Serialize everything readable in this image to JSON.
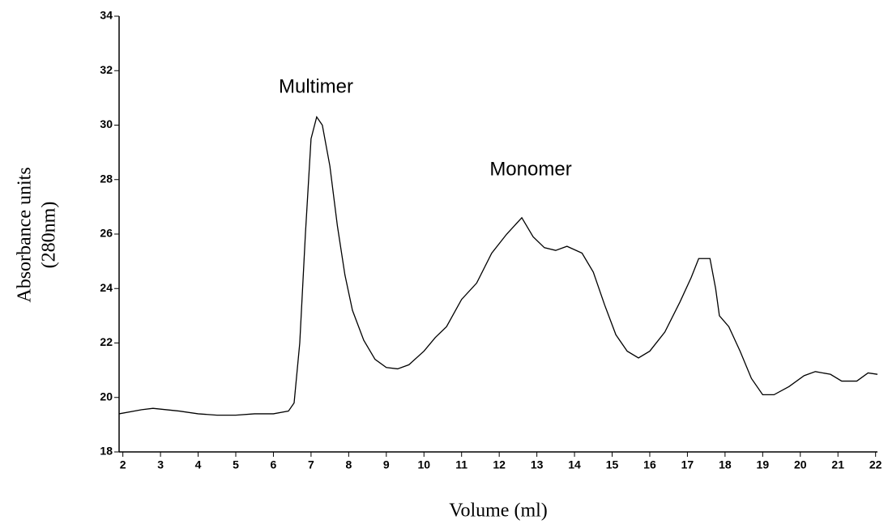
{
  "chart_data": {
    "type": "line",
    "x_label": "Volume (ml)",
    "y_label": [
      "Absorbance units",
      "(280nm)"
    ],
    "annotations": [
      "Multimer",
      "Monomer"
    ],
    "xlim": [
      1.9,
      22.05
    ],
    "xticks": [
      2,
      3,
      4,
      5,
      6,
      7,
      8,
      9,
      10,
      11,
      12,
      13,
      14,
      15,
      16,
      17,
      18,
      19,
      20,
      21,
      22
    ],
    "ylim": [
      18,
      34
    ],
    "yticks": [
      18,
      20,
      22,
      24,
      26,
      28,
      30,
      32,
      34
    ],
    "series": [
      {
        "color": "#000000",
        "x": [
          1.9,
          2.5,
          2.8,
          3.5,
          4,
          4.5,
          5,
          5.5,
          6,
          6.4,
          6.55,
          6.7,
          6.85,
          7.0,
          7.15,
          7.3,
          7.5,
          7.7,
          7.9,
          8.1,
          8.4,
          8.7,
          9.0,
          9.3,
          9.6,
          10.0,
          10.3,
          10.6,
          11.0,
          11.4,
          11.8,
          12.2,
          12.6,
          12.9,
          13.2,
          13.5,
          13.8,
          14.2,
          14.5,
          14.8,
          15.1,
          15.4,
          15.7,
          16.0,
          16.4,
          16.8,
          17.1,
          17.3,
          17.6,
          17.75,
          17.85,
          18.1,
          18.4,
          18.7,
          19.0,
          19.3,
          19.7,
          20.1,
          20.4,
          20.8,
          21.1,
          21.5,
          21.8,
          22.05
        ],
        "values": [
          19.4,
          19.55,
          19.6,
          19.5,
          19.4,
          19.35,
          19.35,
          19.4,
          19.4,
          19.5,
          19.8,
          22,
          26,
          29.5,
          30.3,
          30.0,
          28.5,
          26.3,
          24.5,
          23.2,
          22.1,
          21.4,
          21.1,
          21.05,
          21.2,
          21.7,
          22.2,
          22.6,
          23.6,
          24.2,
          25.3,
          26.0,
          26.6,
          25.9,
          25.5,
          25.4,
          25.55,
          25.3,
          24.6,
          23.4,
          22.3,
          21.7,
          21.45,
          21.7,
          22.4,
          23.5,
          24.4,
          25.1,
          25.1,
          24.0,
          23.0,
          22.6,
          21.7,
          20.7,
          20.1,
          20.1,
          20.4,
          20.8,
          20.95,
          20.85,
          20.6,
          20.6,
          20.9,
          20.85
        ]
      }
    ]
  }
}
